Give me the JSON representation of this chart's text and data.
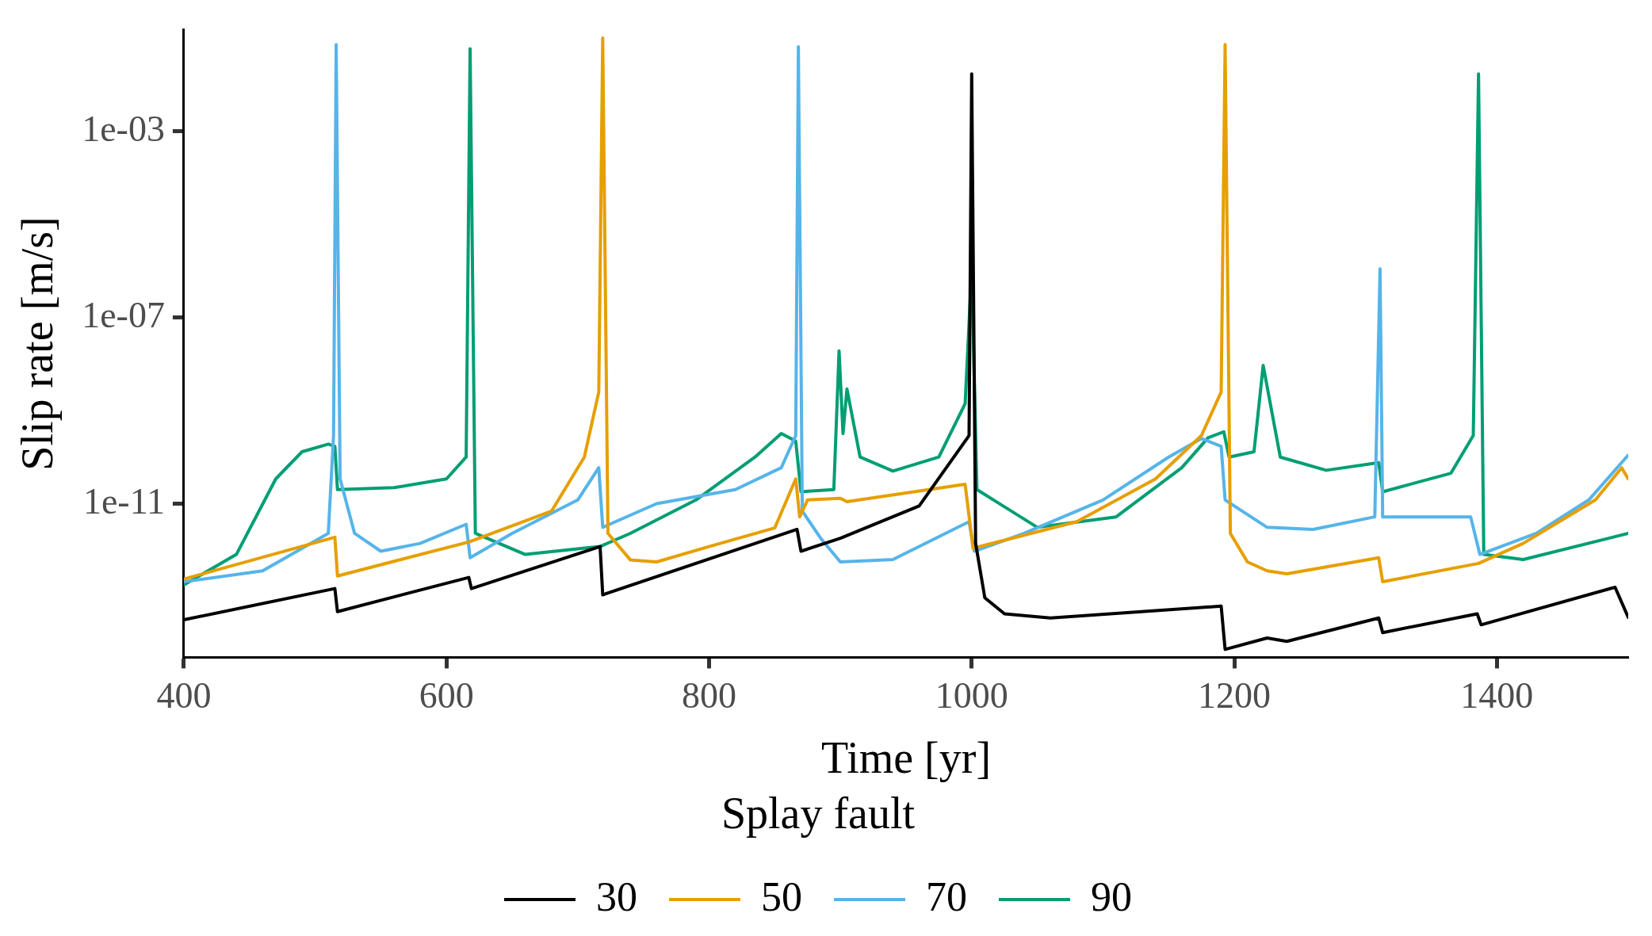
{
  "chart_data": {
    "type": "line",
    "xlabel": "Time [yr]",
    "ylabel": "Slip rate [m/s]",
    "legend_title": "Splay fault",
    "legend": "bottom",
    "grid": false,
    "log": "y",
    "marker": "none",
    "line_style": "solid",
    "xlim": [
      400,
      1500
    ],
    "xticks": [
      400,
      600,
      800,
      1000,
      1200,
      1400
    ],
    "ylim": [
      5e-15,
      0.15
    ],
    "yticks": [
      {
        "value": 1e-11,
        "label": "1e-11"
      },
      {
        "value": 1e-07,
        "label": "1e-07"
      },
      {
        "value": 0.001,
        "label": "1e-03"
      }
    ],
    "series": [
      {
        "name": "30",
        "color": "#000000",
        "x": [
          400,
          515,
          517,
          617,
          619,
          717,
          719,
          867,
          870,
          900,
          960,
          998,
          1000,
          1003,
          1010,
          1025,
          1060,
          1190,
          1193,
          1225,
          1240,
          1310,
          1313,
          1385,
          1388,
          1490,
          1500
        ],
        "values": [
          3.2e-14,
          1.5e-13,
          4.8e-14,
          2.6e-13,
          1.5e-13,
          1.2e-12,
          1.1e-13,
          2.8e-12,
          9.5e-13,
          1.8e-12,
          8.9e-12,
          2.9e-10,
          0.017,
          1.4e-12,
          9.5e-14,
          4.3e-14,
          3.5e-14,
          6.3e-14,
          7.4e-15,
          1.3e-14,
          1.1e-14,
          3.5e-14,
          1.7e-14,
          4.3e-14,
          2.5e-14,
          1.6e-13,
          3.6e-14
        ]
      },
      {
        "name": "50",
        "color": "#e69f00",
        "x": [
          400,
          515,
          517,
          617,
          680,
          705,
          716,
          719,
          723,
          740,
          760,
          800,
          850,
          866,
          869,
          875,
          900,
          905,
          995,
          1001,
          1080,
          1140,
          1175,
          1190,
          1193,
          1197,
          1210,
          1225,
          1240,
          1310,
          1313,
          1386,
          1420,
          1475,
          1495,
          1500
        ],
        "values": [
          2.4e-13,
          1.9e-12,
          2.8e-13,
          1.5e-12,
          6.9e-12,
          1e-10,
          2.5e-09,
          0.1,
          2.3e-12,
          6.2e-13,
          5.6e-13,
          1.2e-12,
          3e-12,
          3.4e-11,
          5.2e-12,
          1.2e-11,
          1.3e-11,
          1.1e-11,
          2.6e-11,
          1.1e-12,
          4.1e-12,
          3.4e-11,
          2.9e-10,
          2.5e-09,
          0.072,
          2.3e-12,
          5.6e-13,
          3.6e-13,
          3.1e-13,
          6.9e-13,
          2.1e-13,
          5.2e-13,
          1.4e-12,
          1.2e-11,
          5.9e-11,
          3.4e-11
        ]
      },
      {
        "name": "70",
        "color": "#56b4e9",
        "x": [
          400,
          460,
          510,
          514,
          516,
          519,
          530,
          550,
          580,
          615,
          618,
          650,
          700,
          716,
          719,
          760,
          820,
          855,
          866,
          868,
          871,
          885,
          900,
          940,
          998,
          1002,
          1040,
          1100,
          1150,
          1175,
          1190,
          1193,
          1225,
          1260,
          1307,
          1311,
          1313,
          1380,
          1387,
          1430,
          1470,
          1500
        ],
        "values": [
          2.1e-13,
          3.6e-13,
          2.3e-12,
          2.9e-10,
          0.072,
          3.4e-11,
          2.3e-12,
          9.5e-13,
          1.4e-12,
          3.6e-12,
          6.9e-13,
          2.3e-12,
          1.2e-11,
          5.9e-11,
          3.1e-12,
          1e-11,
          2e-11,
          5.9e-11,
          2.9e-10,
          0.065,
          6.9e-12,
          1.8e-12,
          5.6e-13,
          6.3e-13,
          4.1e-12,
          9.5e-13,
          2.3e-12,
          1.2e-11,
          1e-10,
          2.5e-10,
          1.7e-10,
          1.2e-11,
          3.1e-12,
          2.8e-12,
          5.2e-12,
          1.1e-06,
          5.2e-12,
          5.2e-12,
          8.1e-13,
          2.3e-12,
          1.2e-11,
          1.1e-10
        ]
      },
      {
        "name": "90",
        "color": "#009e73",
        "x": [
          400,
          440,
          470,
          490,
          510,
          515,
          517,
          560,
          600,
          615,
          618,
          622,
          660,
          717,
          740,
          790,
          835,
          855,
          866,
          870,
          895,
          899,
          902,
          905,
          915,
          940,
          975,
          995,
          1000,
          1004,
          1050,
          1110,
          1160,
          1180,
          1192,
          1196,
          1215,
          1222,
          1235,
          1270,
          1310,
          1313,
          1365,
          1382,
          1386,
          1390,
          1420,
          1500
        ],
        "values": [
          1.8e-13,
          8.1e-13,
          3.4e-11,
          1.3e-10,
          1.9e-10,
          1.7e-10,
          2e-11,
          2.2e-11,
          3.4e-11,
          1e-10,
          0.059,
          2.3e-12,
          8.1e-13,
          1.2e-12,
          2.3e-12,
          1.2e-11,
          1e-10,
          3.2e-10,
          2.2e-10,
          1.8e-11,
          2e-11,
          1.9e-08,
          3.2e-10,
          2.9e-09,
          1e-10,
          5e-11,
          1e-10,
          1.4e-09,
          1.1e-06,
          2e-11,
          3.1e-12,
          5.2e-12,
          5.9e-11,
          2.6e-10,
          3.5e-10,
          1e-10,
          1.3e-10,
          9.3e-09,
          1e-10,
          5.2e-11,
          7.6e-11,
          1.8e-11,
          4.5e-11,
          2.9e-10,
          0.017,
          8.1e-13,
          6.3e-13,
          2.3e-12
        ]
      }
    ]
  }
}
